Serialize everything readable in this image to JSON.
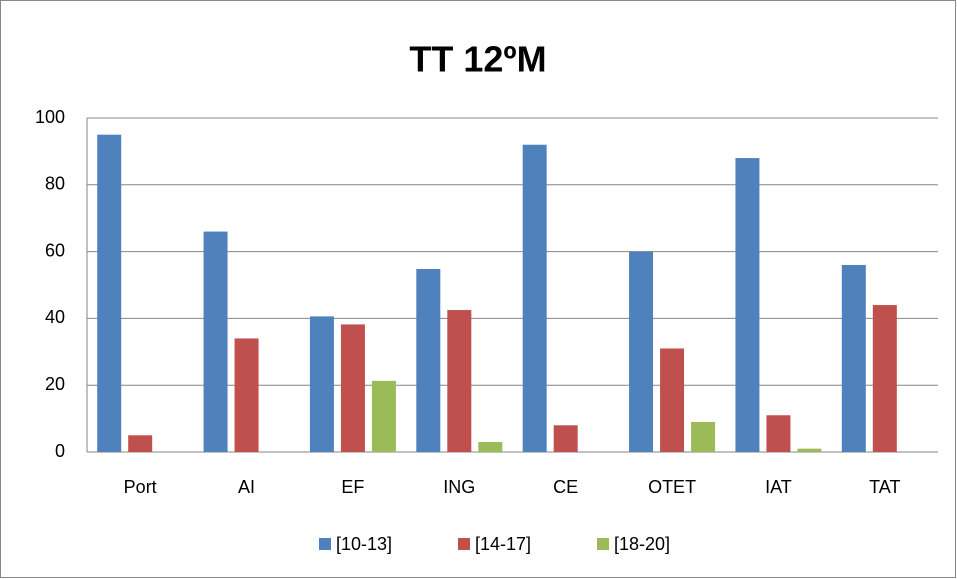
{
  "chart_data": {
    "type": "bar",
    "title": "TT 12ºM",
    "categories": [
      "Port",
      "AI",
      "EF",
      "ING",
      "CE",
      "OTET",
      "IAT",
      "TAT"
    ],
    "series": [
      {
        "name": "[10-13]",
        "color": "#4f81bd",
        "values": [
          95,
          66,
          40.6,
          54.8,
          92,
          60,
          88,
          56
        ]
      },
      {
        "name": "[14-17]",
        "color": "#c0504d",
        "values": [
          5,
          34,
          38.2,
          42.5,
          8,
          31,
          11,
          44
        ]
      },
      {
        "name": "[18-20]",
        "color": "#9bbb59",
        "values": [
          0,
          0,
          21.3,
          3,
          0,
          9,
          1,
          0
        ]
      }
    ],
    "ylim": [
      0,
      100
    ],
    "yticks": [
      0,
      20,
      40,
      60,
      80,
      100
    ],
    "grid": true,
    "legend": "bottom"
  }
}
